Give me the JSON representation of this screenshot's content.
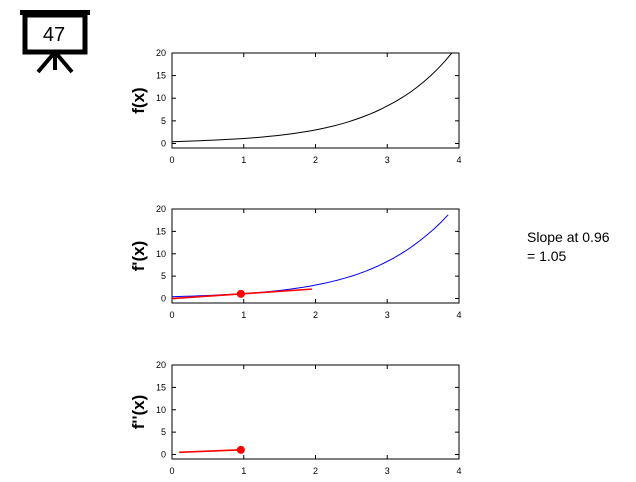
{
  "slide_badge": {
    "number": "47",
    "icon": "projector-screen-icon"
  },
  "annotation": {
    "line1": "Slope at 0.96",
    "line2": "= 1.05"
  },
  "chart_data": [
    {
      "type": "line",
      "ylabel": "f(x)",
      "xlim": [
        0,
        4
      ],
      "ylim": [
        -1,
        20
      ],
      "xticks": [
        "0",
        "1",
        "2",
        "3",
        "4"
      ],
      "yticks": [
        "0",
        "5",
        "10",
        "15",
        "20"
      ],
      "series": [
        {
          "color": "#000000",
          "x": [
            0,
            0.5,
            1,
            1.5,
            2,
            2.5,
            3,
            3.5,
            3.9
          ],
          "y": [
            0.4,
            0.7,
            1.1,
            1.8,
            3.0,
            5.0,
            8.3,
            13.5,
            20.0
          ]
        }
      ]
    },
    {
      "type": "line",
      "ylabel": "f'(x)",
      "xlim": [
        0,
        4
      ],
      "ylim": [
        -1,
        20
      ],
      "xticks": [
        "0",
        "1",
        "2",
        "3",
        "4"
      ],
      "yticks": [
        "0",
        "5",
        "10",
        "15",
        "20"
      ],
      "series": [
        {
          "color": "#0000ff",
          "x": [
            0,
            0.5,
            1,
            1.5,
            2,
            2.5,
            3,
            3.5,
            3.85
          ],
          "y": [
            0.4,
            0.7,
            1.1,
            1.8,
            3.0,
            5.0,
            8.3,
            13.5,
            18.7
          ]
        },
        {
          "color": "#ff0000",
          "x": [
            0,
            1.95
          ],
          "y": [
            0.0,
            2.1
          ]
        }
      ],
      "points": [
        {
          "x": 0.96,
          "y": 1.05,
          "color": "#ff0000"
        }
      ]
    },
    {
      "type": "line",
      "ylabel": "f''(x)",
      "xlim": [
        0,
        4
      ],
      "ylim": [
        -1,
        20
      ],
      "xticks": [
        "0",
        "1",
        "2",
        "3",
        "4"
      ],
      "yticks": [
        "0",
        "5",
        "10",
        "15",
        "20"
      ],
      "series": [
        {
          "color": "#ff0000",
          "x": [
            0.1,
            0.96
          ],
          "y": [
            0.5,
            1.05
          ]
        }
      ],
      "points": [
        {
          "x": 0.96,
          "y": 1.05,
          "color": "#ff0000"
        }
      ]
    }
  ]
}
